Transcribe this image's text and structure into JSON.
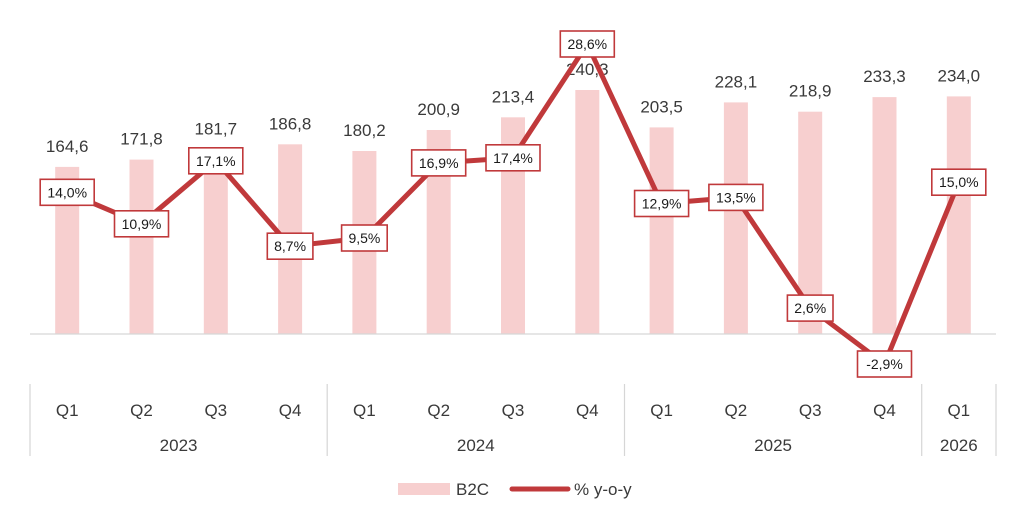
{
  "chart_data": {
    "type": "bar",
    "title": "",
    "xlabel": "",
    "ylabel": "",
    "categories": [
      "Q1",
      "Q2",
      "Q3",
      "Q4",
      "Q1",
      "Q2",
      "Q3",
      "Q4",
      "Q1",
      "Q2",
      "Q3",
      "Q4",
      "Q1"
    ],
    "years": [
      {
        "label": "2023",
        "count": 4
      },
      {
        "label": "2024",
        "count": 4
      },
      {
        "label": "2025",
        "count": 4
      },
      {
        "label": "2026",
        "count": 1
      }
    ],
    "series": [
      {
        "name": "B2C",
        "kind": "bar",
        "color": "#f7cfcf",
        "values": [
          164.6,
          171.8,
          181.7,
          186.8,
          180.2,
          200.9,
          213.4,
          240.3,
          203.5,
          228.1,
          218.9,
          233.3,
          234.0
        ],
        "labels": [
          "164,6",
          "171,8",
          "181,7",
          "186,8",
          "180,2",
          "200,9",
          "213,4",
          "240,3",
          "203,5",
          "228,1",
          "218,9",
          "233,3",
          "234,0"
        ]
      },
      {
        "name": "% y-o-y",
        "kind": "line",
        "color": "#c0393b",
        "values": [
          14.0,
          10.9,
          17.1,
          8.7,
          9.5,
          16.9,
          17.4,
          28.6,
          12.9,
          13.5,
          2.6,
          -2.9,
          15.0
        ],
        "labels": [
          "14,0%",
          "10,9%",
          "17,1%",
          "8,7%",
          "9,5%",
          "16,9%",
          "17,4%",
          "28,6%",
          "12,9%",
          "13,5%",
          "2,6%",
          "-2,9%",
          "15,0%"
        ]
      }
    ],
    "ylim_bar": [
      0,
      260
    ],
    "ylim_pct": [
      -7,
      31
    ],
    "legend": "bottom-center",
    "grid": false
  }
}
